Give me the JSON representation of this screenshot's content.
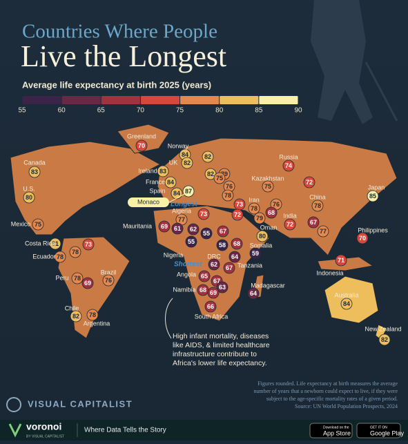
{
  "header": {
    "title_line1": "Countries Where People",
    "title_line2": "Live the Longest",
    "subtitle": "Average life expectancy at birth 2025 (years)"
  },
  "legend": {
    "ticks": [
      55,
      60,
      65,
      70,
      75,
      80,
      85,
      90
    ],
    "colors": [
      "#3a2447",
      "#6a2844",
      "#a3323f",
      "#d9473a",
      "#e6884b",
      "#eebd5c",
      "#f8f0a6"
    ]
  },
  "countries": [
    {
      "name": "Greenland",
      "value": 70
    },
    {
      "name": "Canada",
      "value": 83
    },
    {
      "name": "Norway",
      "value": 84
    },
    {
      "name": "UK",
      "value": 82
    },
    {
      "name": "Ireland",
      "value": 83
    },
    {
      "name": null,
      "value": 82
    },
    {
      "name": null,
      "value": 79
    },
    {
      "name": null,
      "value": 82
    },
    {
      "name": null,
      "value": 75
    },
    {
      "name": "France",
      "value": 84
    },
    {
      "name": null,
      "value": 76
    },
    {
      "name": "Spain",
      "value": 84
    },
    {
      "name": "Monaco",
      "value": 87
    },
    {
      "name": "Kazakhstan",
      "value": 75
    },
    {
      "name": "Russia",
      "value": 74
    },
    {
      "name": null,
      "value": 72
    },
    {
      "name": "U.S.",
      "value": 80
    },
    {
      "name": "Japan",
      "value": 85
    },
    {
      "name": "China",
      "value": 78
    },
    {
      "name": null,
      "value": 78
    },
    {
      "name": null,
      "value": 73
    },
    {
      "name": "Iran",
      "value": 78
    },
    {
      "name": null,
      "value": 76
    },
    {
      "name": null,
      "value": 68
    },
    {
      "name": "Algeria",
      "value": 77
    },
    {
      "name": null,
      "value": 73
    },
    {
      "name": null,
      "value": 72
    },
    {
      "name": null,
      "value": 79
    },
    {
      "name": "Oman",
      "value": 80
    },
    {
      "name": "India",
      "value": 72
    },
    {
      "name": null,
      "value": 67
    },
    {
      "name": null,
      "value": 77
    },
    {
      "name": "Philippines",
      "value": 70
    },
    {
      "name": "Mexico",
      "value": 75
    },
    {
      "name": "Mauritania",
      "value": 69
    },
    {
      "name": null,
      "value": 61
    },
    {
      "name": null,
      "value": 62
    },
    {
      "name": null,
      "value": 55
    },
    {
      "name": null,
      "value": 67
    },
    {
      "name": "Nigeria",
      "value": 55
    },
    {
      "name": null,
      "value": 58
    },
    {
      "name": null,
      "value": 68
    },
    {
      "name": "Somalia",
      "value": 59
    },
    {
      "name": "Costa Rica",
      "value": 81
    },
    {
      "name": null,
      "value": 73
    },
    {
      "name": null,
      "value": 78
    },
    {
      "name": "Ecuador",
      "value": 78
    },
    {
      "name": "DRC",
      "value": 62
    },
    {
      "name": null,
      "value": 64
    },
    {
      "name": "Tanzania",
      "value": 67
    },
    {
      "name": "Angola",
      "value": 65
    },
    {
      "name": "Brazil",
      "value": 76
    },
    {
      "name": "Peru",
      "value": 78
    },
    {
      "name": null,
      "value": 69
    },
    {
      "name": "Namibia",
      "value": 68
    },
    {
      "name": null,
      "value": 67
    },
    {
      "name": null,
      "value": 63
    },
    {
      "name": null,
      "value": 69
    },
    {
      "name": "Madagascar",
      "value": 64
    },
    {
      "name": "Indonesia",
      "value": 71
    },
    {
      "name": "Australia",
      "value": 84
    },
    {
      "name": "Chile",
      "value": 82
    },
    {
      "name": "Argentina",
      "value": 78
    },
    {
      "name": "South Africa",
      "value": 66
    },
    {
      "name": "New Zealand",
      "value": 82
    }
  ],
  "annotations": {
    "longest": "Longest",
    "shortest": "Shortest",
    "africa_note": [
      "High infant mortality, diseases",
      "like AIDS, & limited healthcare",
      "infrastructure contribute to",
      "Africa's lower life expectancy."
    ]
  },
  "footnote": [
    "Figures rounded. Life expectancy at birth measures the average",
    "number of years that a newborn could expect to live, if they were",
    "subject to the age-specific mortality rates of a given period.",
    "Source: UN World Population Prospects, 2024"
  ],
  "brand": {
    "name": "VISUAL CAPITALIST"
  },
  "footer": {
    "logo": "voronoi",
    "logo_sub": "BY VISUAL CAPITALIST",
    "tagline": "Where Data Tells the Story",
    "app_store_top": "Download on the",
    "app_store": "App Store",
    "play_top": "GET IT ON",
    "play": "Google Play"
  }
}
